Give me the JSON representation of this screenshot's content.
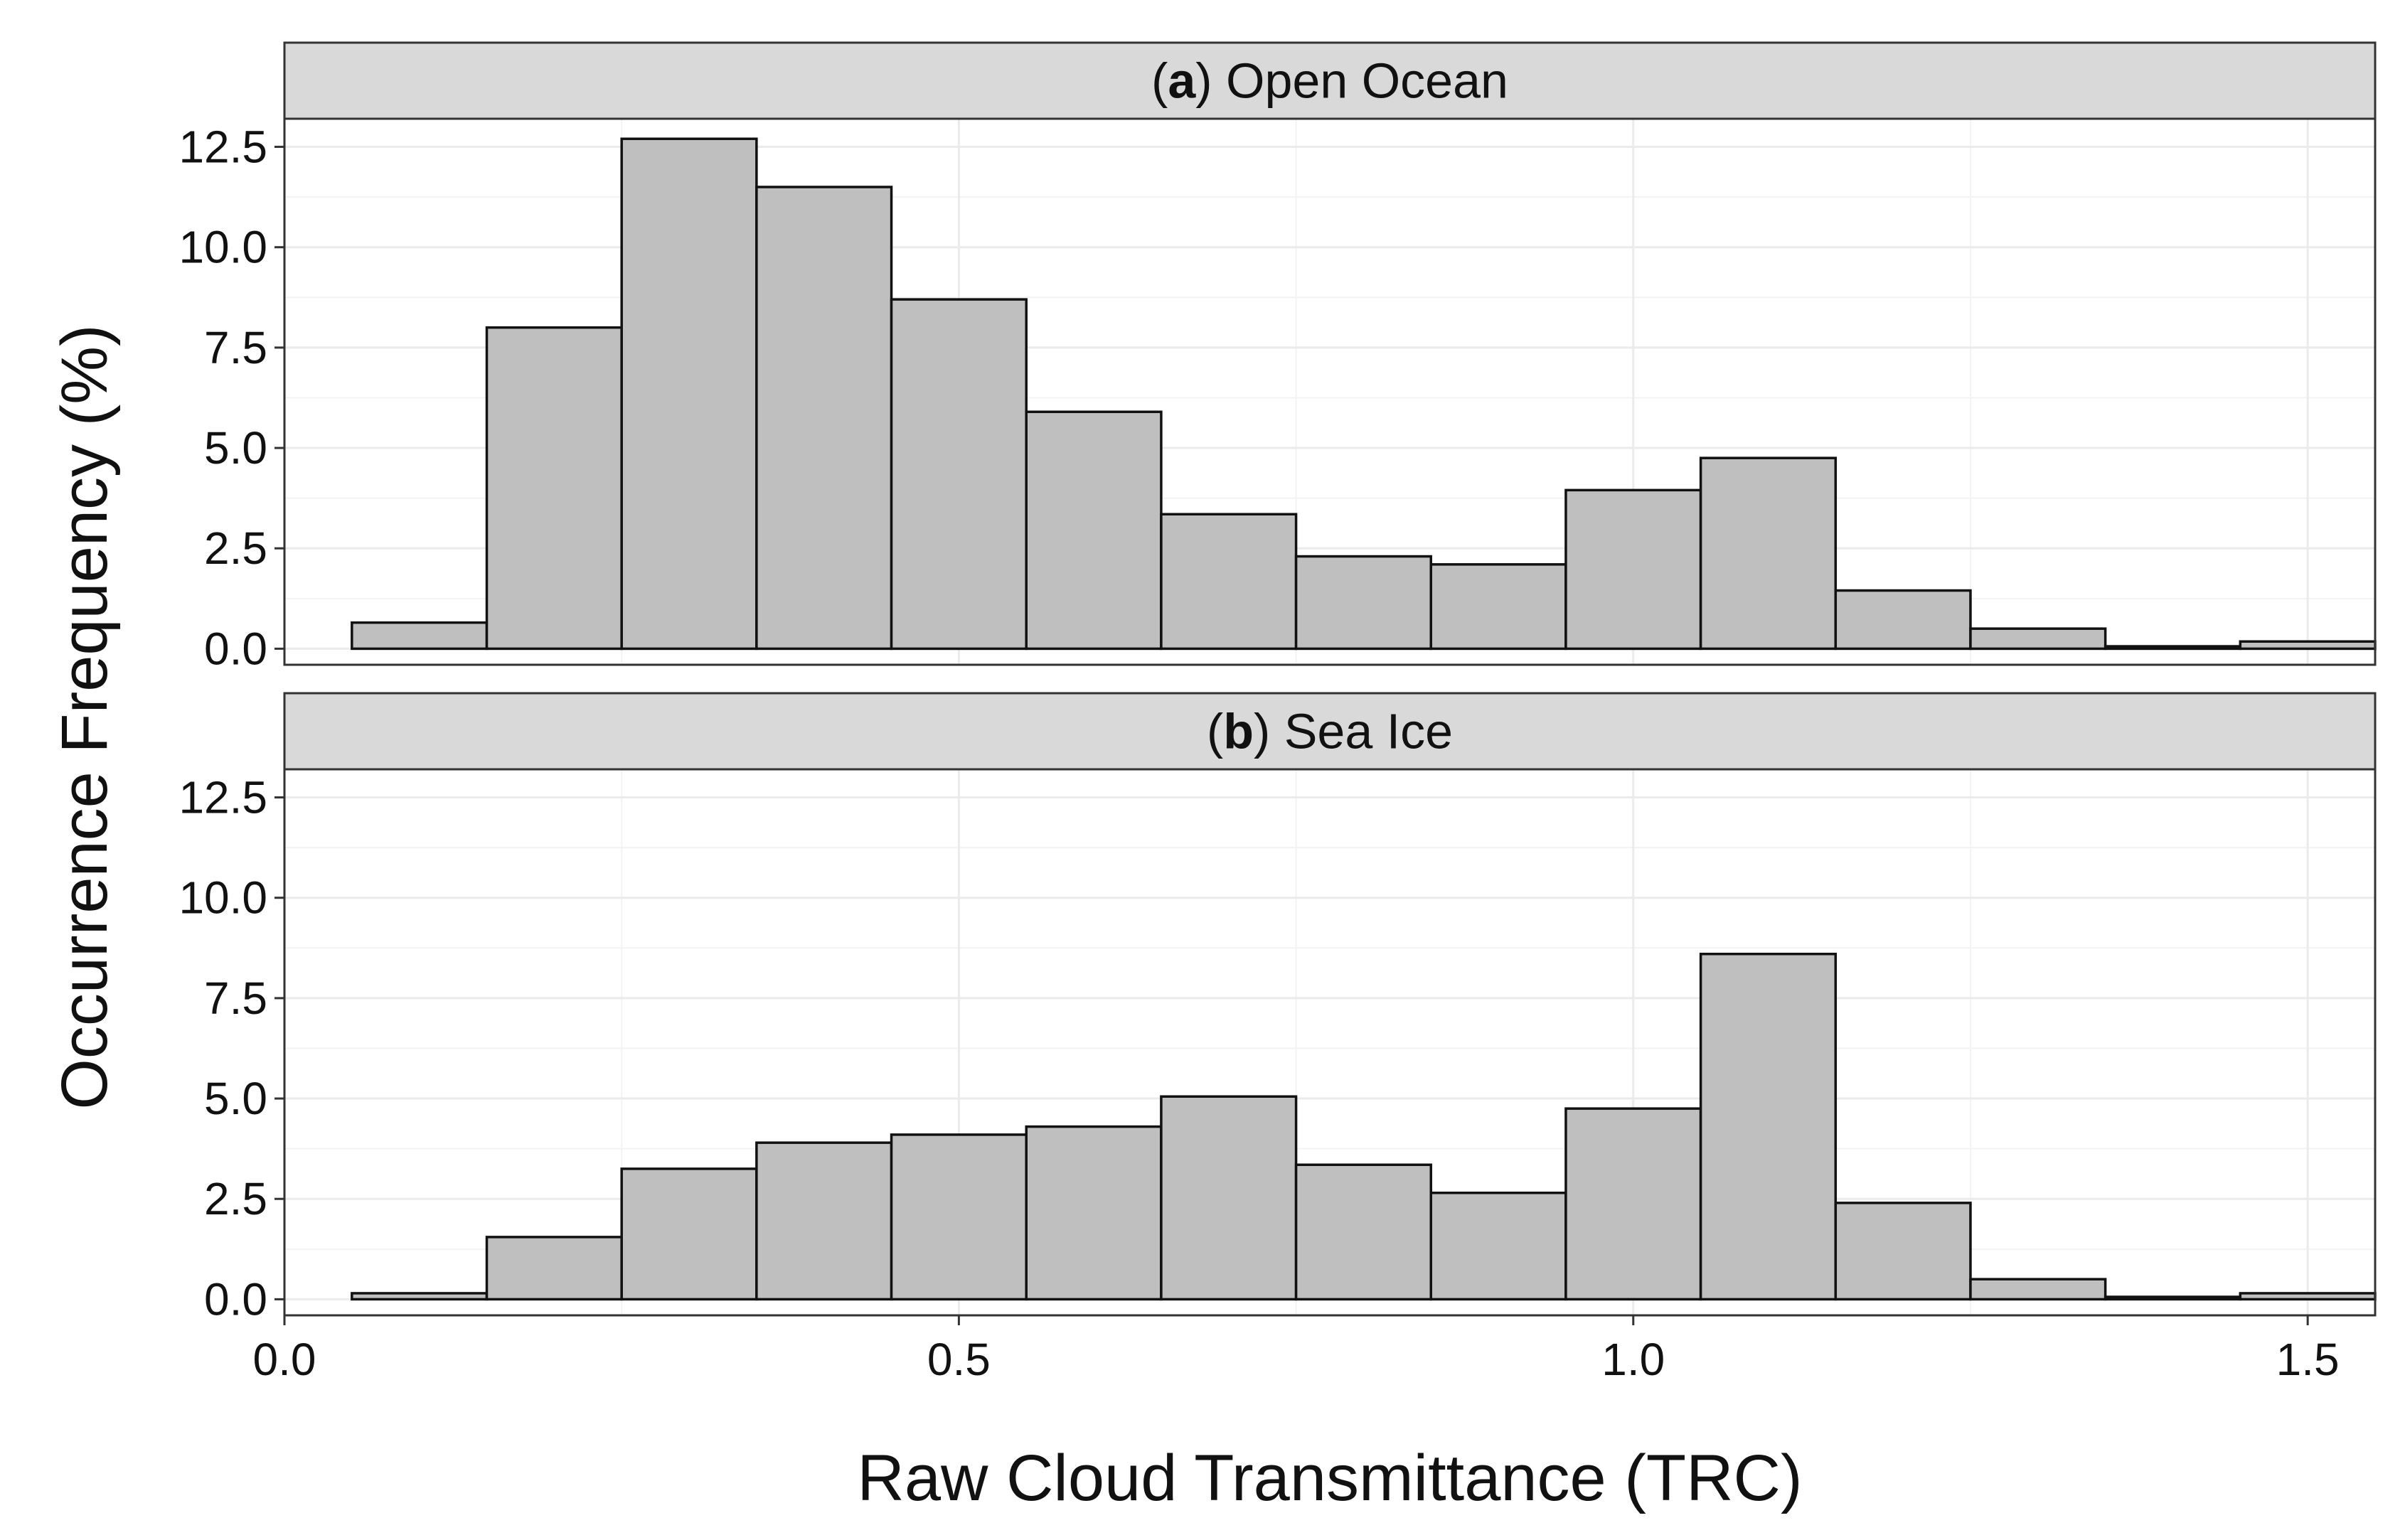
{
  "chart_data": {
    "type": "bar",
    "subtype": "histogram-facets",
    "xlabel": "Raw Cloud Transmittance (TRC)",
    "ylabel": "Occurrence Frequency (%)",
    "xlim": [
      0.0,
      1.55
    ],
    "ylim": [
      -0.4,
      13.2
    ],
    "x_ticks": [
      "0.0",
      "0.5",
      "1.0",
      "1.5"
    ],
    "y_ticks": [
      "0.0",
      "2.5",
      "5.0",
      "7.5",
      "10.0",
      "12.5"
    ],
    "grid": true,
    "bar_color": "#bfbfbf",
    "bin_edges": [
      0.05,
      0.15,
      0.25,
      0.35,
      0.45,
      0.55,
      0.65,
      0.75,
      0.85,
      0.95,
      1.05,
      1.15,
      1.25,
      1.35,
      1.45,
      1.55
    ],
    "panels": [
      {
        "letter": "a",
        "title": " Open Ocean",
        "values": [
          0.65,
          8.0,
          12.7,
          11.5,
          8.7,
          5.9,
          3.35,
          2.3,
          2.1,
          3.95,
          4.75,
          1.45,
          0.5,
          0.06,
          0.18
        ]
      },
      {
        "letter": "b",
        "title": " Sea Ice",
        "values": [
          0.15,
          1.55,
          3.25,
          3.9,
          4.1,
          4.3,
          5.05,
          3.35,
          2.65,
          4.75,
          8.6,
          2.4,
          0.5,
          0.06,
          0.15
        ]
      }
    ]
  }
}
